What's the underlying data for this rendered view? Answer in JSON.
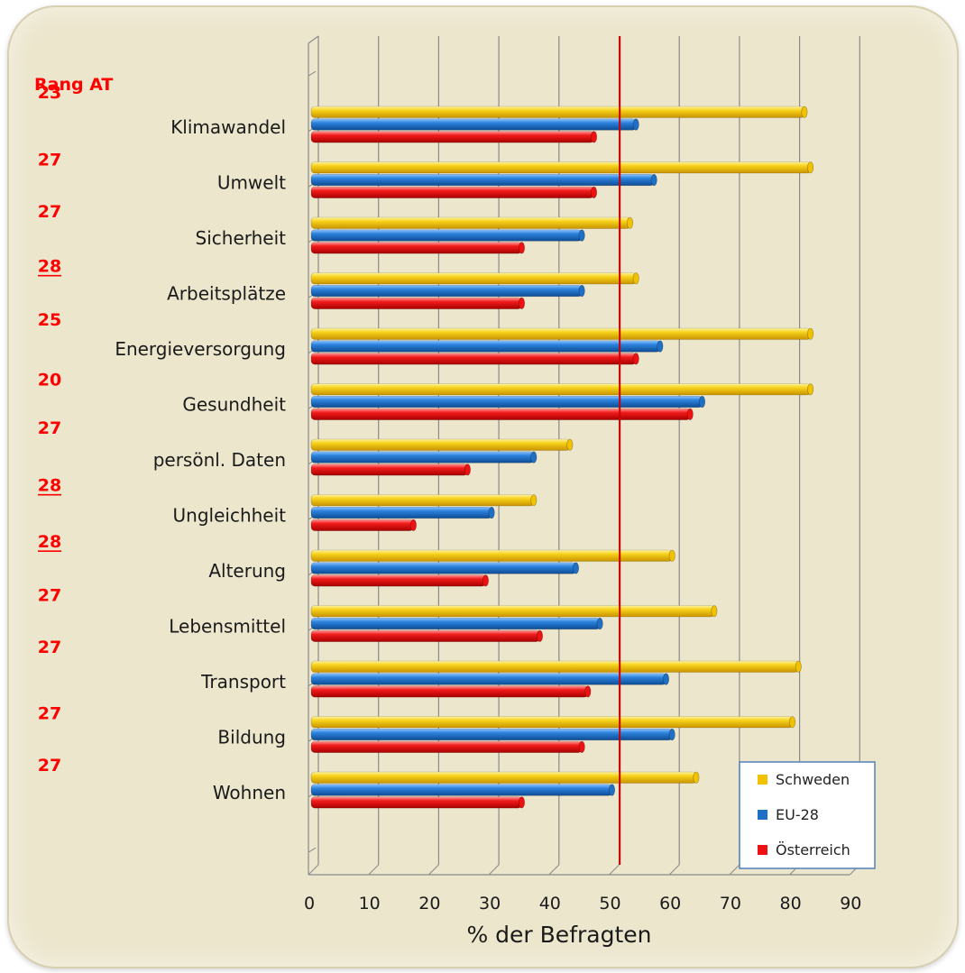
{
  "rank_header": "Rang AT",
  "legend_colors": {
    "Schweden": "#f2c200",
    "EU-28": "#1f6fc4",
    "Österreich": "#ee1111"
  },
  "reference_line": {
    "value": 51,
    "color": "#cc0000"
  },
  "chart_data": {
    "type": "bar",
    "orientation": "horizontal",
    "xlabel": "% der Befragten",
    "xlim": [
      0,
      90
    ],
    "xticks": [
      "0",
      "10",
      "20",
      "30",
      "40",
      "50",
      "60",
      "70",
      "80",
      "90"
    ],
    "grid": true,
    "legend_position": "bottom-right",
    "categories": [
      "Klimawandel",
      "Umwelt",
      "Sicherheit",
      "Arbeitsplätze",
      "Energieversorgung",
      "Gesundheit",
      "persönl. Daten",
      "Ungleichheit",
      "Alterung",
      "Lebensmittel",
      "Transport",
      "Bildung",
      "Wohnen"
    ],
    "ranks": [
      {
        "value": "23",
        "underline": false
      },
      {
        "value": "27",
        "underline": false
      },
      {
        "value": "27",
        "underline": false
      },
      {
        "value": "28",
        "underline": true
      },
      {
        "value": "25",
        "underline": false
      },
      {
        "value": "20",
        "underline": false
      },
      {
        "value": "27",
        "underline": false
      },
      {
        "value": "28",
        "underline": true
      },
      {
        "value": "28",
        "underline": true
      },
      {
        "value": "27",
        "underline": false
      },
      {
        "value": "27",
        "underline": false
      },
      {
        "value": "27",
        "underline": false
      },
      {
        "value": "27",
        "underline": false
      }
    ],
    "series": [
      {
        "name": "Schweden",
        "values": [
          82,
          83,
          53,
          54,
          83,
          83,
          43,
          37,
          60,
          67,
          81,
          80,
          64
        ]
      },
      {
        "name": "EU-28",
        "values": [
          54,
          57,
          45,
          45,
          58,
          65,
          37,
          30,
          44,
          48,
          59,
          60,
          50
        ]
      },
      {
        "name": "Österreich",
        "values": [
          47,
          47,
          35,
          35,
          54,
          63,
          26,
          17,
          29,
          38,
          46,
          45,
          35
        ]
      }
    ]
  }
}
